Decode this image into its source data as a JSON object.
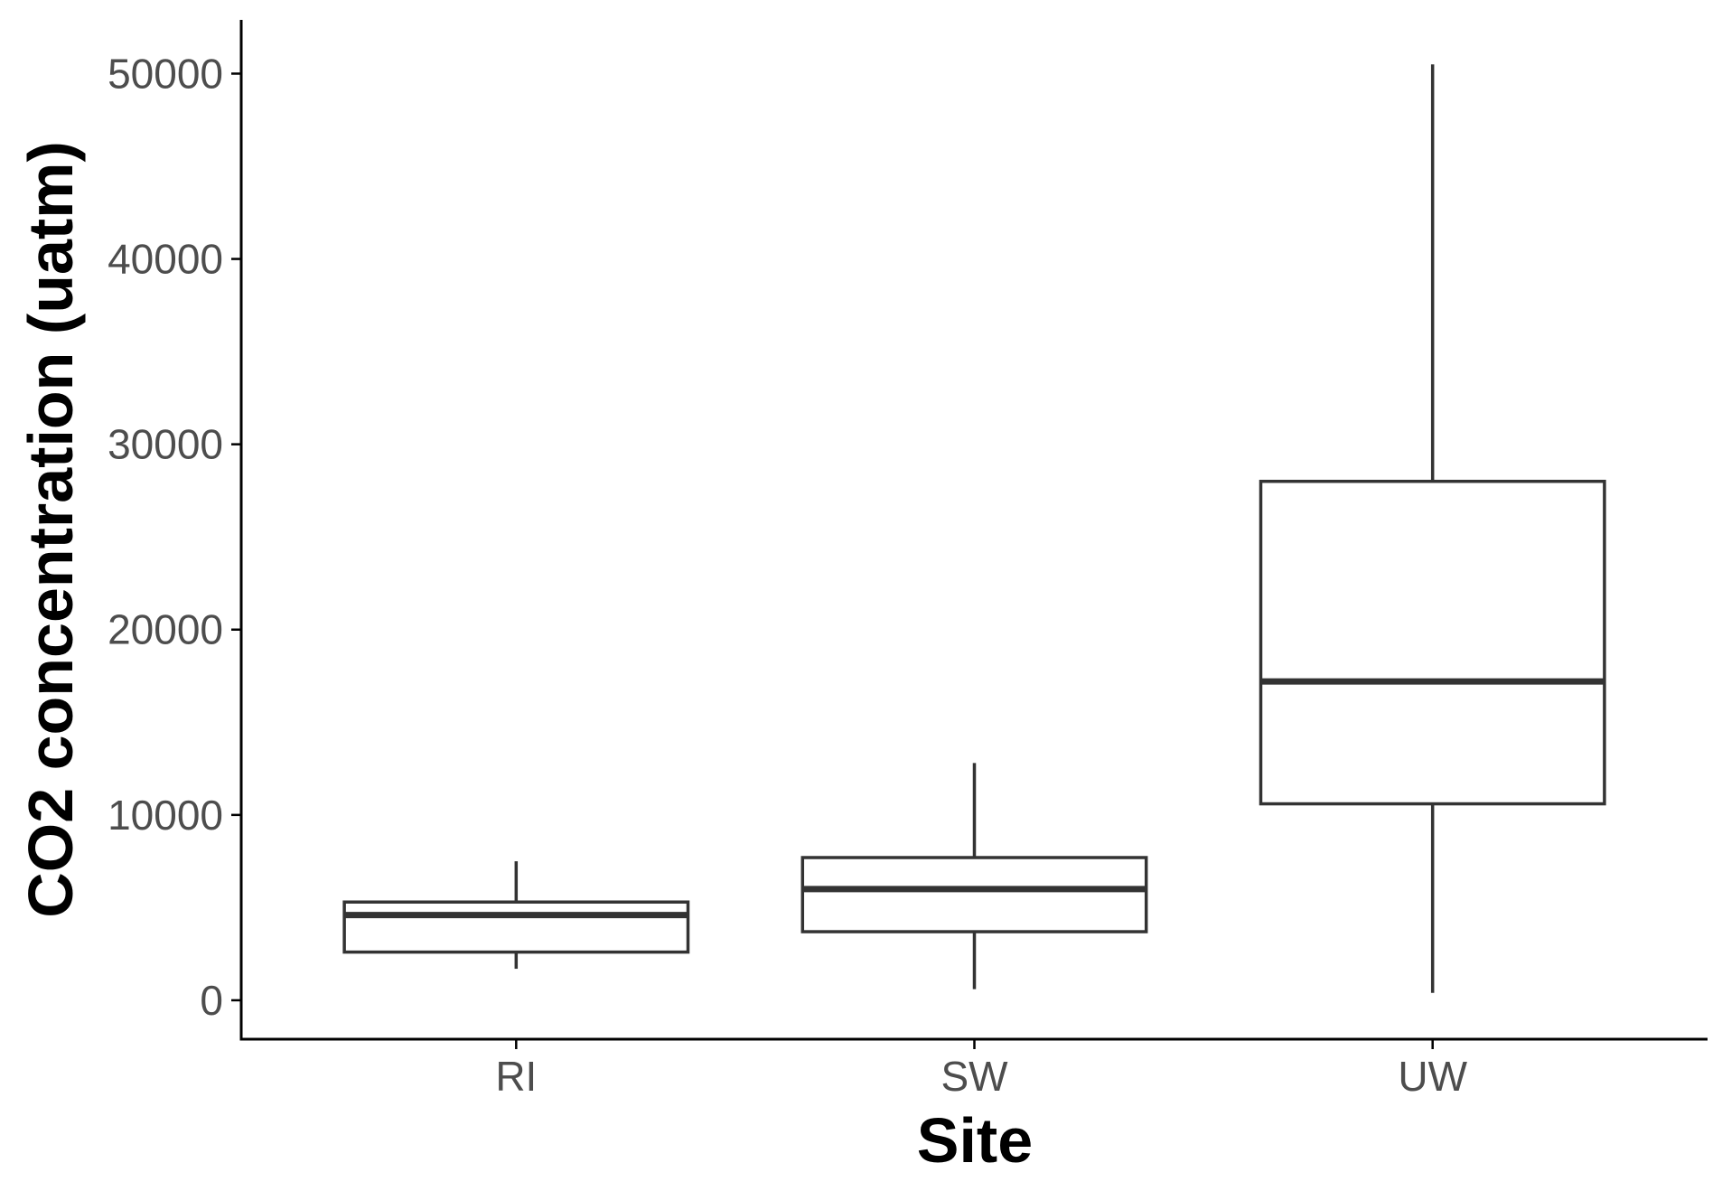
{
  "chart_data": {
    "type": "boxplot",
    "categories": [
      "RI",
      "SW",
      "UW"
    ],
    "boxes": [
      {
        "category": "RI",
        "min": 1700,
        "q1": 2600,
        "median": 4600,
        "q3": 5300,
        "max": 7500
      },
      {
        "category": "SW",
        "min": 600,
        "q1": 3700,
        "median": 6000,
        "q3": 7700,
        "max": 12800
      },
      {
        "category": "UW",
        "min": 400,
        "q1": 10600,
        "median": 17200,
        "q3": 28000,
        "max": 50500
      }
    ],
    "xlabel": "Site",
    "ylabel": "CO2 concentration (uatm)",
    "yticks": [
      0,
      10000,
      20000,
      30000,
      40000,
      50000
    ],
    "ylim": [
      -2100,
      52900
    ],
    "grid": false,
    "colors": {
      "box_stroke": "#333333",
      "box_fill": "#ffffff",
      "tick_text": "#4d4d4d",
      "axis": "#000000"
    }
  }
}
